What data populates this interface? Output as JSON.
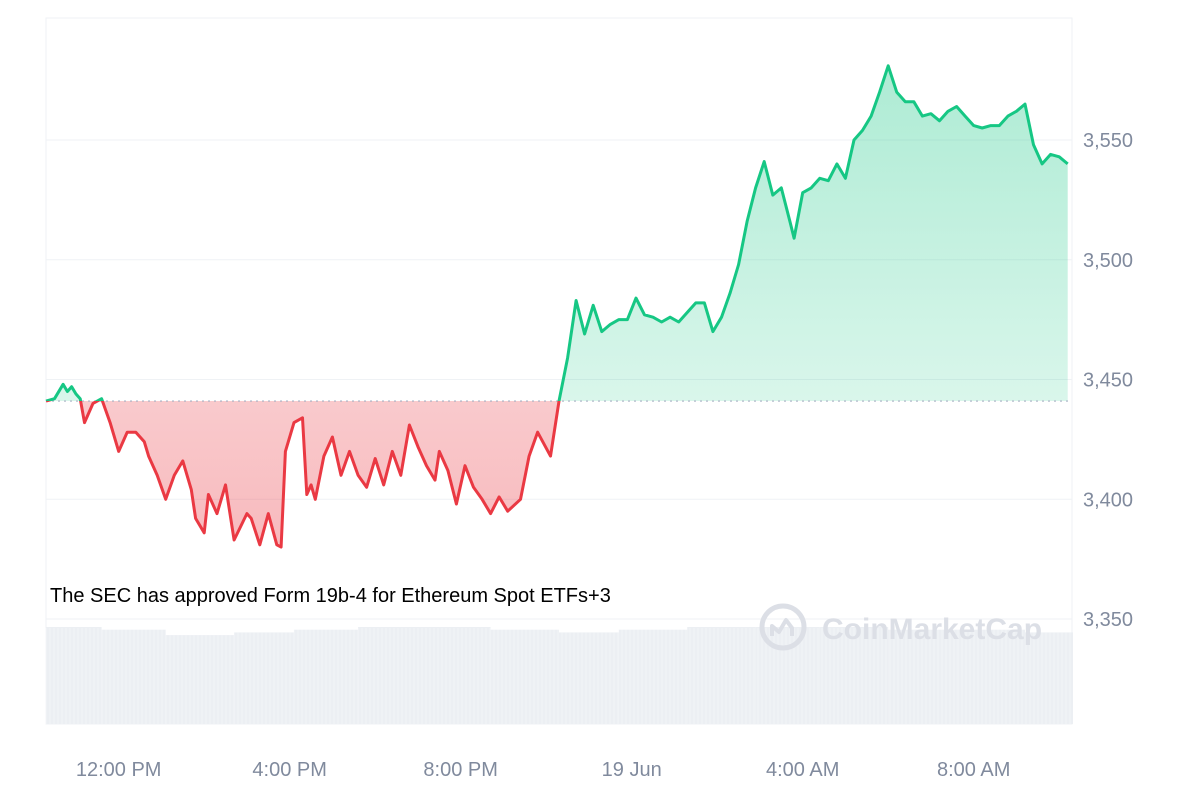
{
  "chart_data": {
    "type": "area",
    "title": "",
    "xlabel": "",
    "ylabel": "",
    "ylim": [
      3300,
      3600
    ],
    "y_ticks": [
      "3,350",
      "3,400",
      "3,450",
      "3,500",
      "3,550"
    ],
    "y_tick_values": [
      3350,
      3400,
      3450,
      3500,
      3550
    ],
    "x_ticks": [
      "12:00 PM",
      "4:00 PM",
      "8:00 PM",
      "19 Jun",
      "4:00 AM",
      "8:00 AM"
    ],
    "x_tick_hours": [
      12,
      16,
      20,
      24,
      28,
      32
    ],
    "x_range_hours": [
      10.3,
      34.3
    ],
    "baseline": 3441,
    "grid": true,
    "colors": {
      "up": "#16c784",
      "down": "#ea3943",
      "grid": "#eff2f5",
      "baseline": "#a6b0c3"
    },
    "price_series": {
      "x_hours": [
        10.3,
        10.5,
        10.7,
        10.8,
        10.9,
        11.0,
        11.1,
        11.2,
        11.4,
        11.6,
        11.8,
        12.0,
        12.2,
        12.4,
        12.6,
        12.7,
        12.9,
        13.1,
        13.3,
        13.5,
        13.7,
        13.8,
        14.0,
        14.1,
        14.3,
        14.5,
        14.7,
        15.0,
        15.1,
        15.3,
        15.5,
        15.7,
        15.8,
        15.9,
        16.1,
        16.3,
        16.4,
        16.5,
        16.6,
        16.8,
        17.0,
        17.2,
        17.4,
        17.6,
        17.8,
        18.0,
        18.2,
        18.4,
        18.6,
        18.8,
        19.0,
        19.2,
        19.4,
        19.5,
        19.7,
        19.9,
        20.1,
        20.3,
        20.5,
        20.7,
        20.9,
        21.1,
        21.4,
        21.6,
        21.8,
        22.1,
        22.3,
        22.5,
        22.7,
        22.9,
        23.1,
        23.3,
        23.5,
        23.7,
        23.9,
        24.1,
        24.3,
        24.5,
        24.7,
        24.9,
        25.1,
        25.3,
        25.5,
        25.7,
        25.9,
        26.1,
        26.3,
        26.5,
        26.7,
        26.9,
        27.1,
        27.3,
        27.5,
        27.7,
        27.8,
        28.0,
        28.2,
        28.4,
        28.6,
        28.8,
        29.0,
        29.2,
        29.4,
        29.6,
        29.8,
        30.0,
        30.2,
        30.4,
        30.6,
        30.8,
        31.0,
        31.2,
        31.4,
        31.6,
        31.8,
        32.0,
        32.2,
        32.4,
        32.6,
        32.8,
        33.0,
        33.2,
        33.4,
        33.6,
        33.8,
        34.0,
        34.2
      ],
      "values": [
        3441,
        3442,
        3448,
        3445,
        3447,
        3444,
        3442,
        3432,
        3440,
        3442,
        3432,
        3420,
        3428,
        3428,
        3424,
        3418,
        3410,
        3400,
        3410,
        3416,
        3404,
        3392,
        3386,
        3402,
        3394,
        3406,
        3383,
        3394,
        3392,
        3381,
        3394,
        3381,
        3380,
        3420,
        3432,
        3434,
        3402,
        3406,
        3400,
        3418,
        3426,
        3410,
        3420,
        3410,
        3405,
        3417,
        3406,
        3420,
        3410,
        3431,
        3422,
        3414,
        3408,
        3420,
        3412,
        3398,
        3414,
        3405,
        3400,
        3394,
        3401,
        3395,
        3400,
        3418,
        3428,
        3418,
        3441,
        3459,
        3483,
        3469,
        3481,
        3470,
        3473,
        3475,
        3475,
        3484,
        3477,
        3476,
        3474,
        3476,
        3474,
        3478,
        3482,
        3482,
        3470,
        3476,
        3486,
        3498,
        3516,
        3530,
        3541,
        3527,
        3530,
        3516,
        3509,
        3528,
        3530,
        3534,
        3533,
        3540,
        3534,
        3550,
        3554,
        3560,
        3570,
        3581,
        3570,
        3566,
        3566,
        3560,
        3561,
        3558,
        3562,
        3564,
        3560,
        3556,
        3555,
        3556,
        3556,
        3560,
        3562,
        3565,
        3548,
        3540,
        3544,
        3543,
        3540
      ]
    },
    "volume_series": {
      "x_hours": [
        10.3,
        11.6,
        13.1,
        14.7,
        16.1,
        17.6,
        19.2,
        20.7,
        22.3,
        23.7,
        25.3,
        26.9,
        28.4,
        30.0,
        31.6,
        33.2,
        34.3
      ],
      "values": [
        36,
        35,
        33,
        34,
        35,
        36,
        36,
        35,
        34,
        35,
        36,
        36,
        36,
        35,
        35,
        34,
        34
      ]
    },
    "annotations": [
      "The SEC has approved Form 19b-4 for Ethereum Spot ETFs+3"
    ],
    "watermark": "CoinMarketCap"
  }
}
